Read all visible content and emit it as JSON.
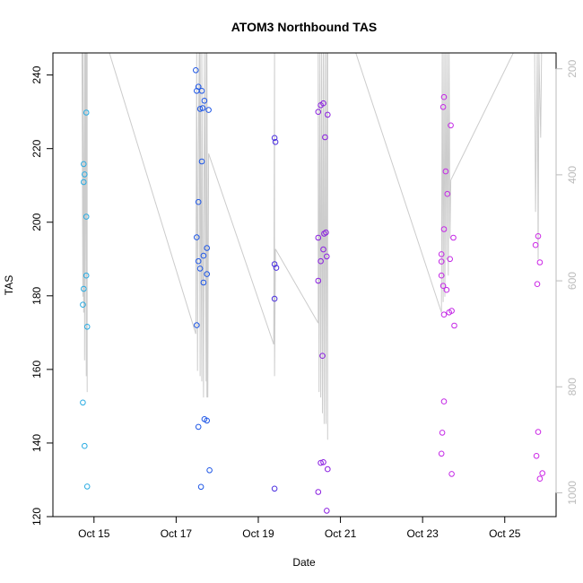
{
  "chart_data": {
    "type": "scatter",
    "title": "ATOM3 Northbound TAS",
    "xlabel": "Date",
    "ylabel": "TAS",
    "y2label": "",
    "grid": false,
    "xlim": [
      "2016-10-14 00:00",
      "2016-10-26 06:00"
    ],
    "ylim": [
      120,
      246
    ],
    "y2lim": [
      1045,
      170
    ],
    "x_ticks": [
      {
        "date": "2016-10-15",
        "label": "Oct 15"
      },
      {
        "date": "2016-10-17",
        "label": "Oct 17"
      },
      {
        "date": "2016-10-19",
        "label": "Oct 19"
      },
      {
        "date": "2016-10-21",
        "label": "Oct 21"
      },
      {
        "date": "2016-10-23",
        "label": "Oct 23"
      },
      {
        "date": "2016-10-25",
        "label": "Oct 25"
      }
    ],
    "y_ticks": [
      120,
      140,
      160,
      180,
      200,
      220,
      240
    ],
    "y2_ticks": [
      200,
      400,
      600,
      800,
      1000
    ],
    "colors": {
      "axis": "#000000",
      "pressure_line": "#cccccc",
      "right_axis": "#bbbbbb",
      "gradient": [
        "#29abe2",
        "#1f57e6",
        "#6b1fe0",
        "#cc28e6"
      ]
    },
    "series": [
      {
        "color": "#29abe2",
        "points": [
          [
            "2016-10-14 18:00",
            215.8
          ],
          [
            "2016-10-14 18:30",
            213.0
          ],
          [
            "2016-10-14 18:00",
            210.9
          ],
          [
            "2016-10-14 19:30",
            229.8
          ],
          [
            "2016-10-14 19:30",
            201.5
          ],
          [
            "2016-10-14 19:30",
            185.5
          ],
          [
            "2016-10-14 18:00",
            181.9
          ],
          [
            "2016-10-14 17:30",
            177.6
          ],
          [
            "2016-10-14 20:00",
            171.6
          ],
          [
            "2016-10-14 17:30",
            151.0
          ],
          [
            "2016-10-14 18:30",
            139.2
          ],
          [
            "2016-10-14 20:00",
            128.2
          ]
        ]
      },
      {
        "color": "#1f57e6",
        "points": [
          [
            "2016-10-17 11:30",
            241.3
          ],
          [
            "2016-10-17 13:00",
            236.8
          ],
          [
            "2016-10-17 12:00",
            235.7
          ],
          [
            "2016-10-17 15:00",
            235.7
          ],
          [
            "2016-10-17 16:30",
            233.0
          ],
          [
            "2016-10-17 15:30",
            231.0
          ],
          [
            "2016-10-17 14:00",
            230.8
          ],
          [
            "2016-10-17 19:00",
            230.5
          ],
          [
            "2016-10-17 15:00",
            216.5
          ],
          [
            "2016-10-17 13:00",
            205.5
          ],
          [
            "2016-10-17 12:00",
            195.9
          ],
          [
            "2016-10-17 18:00",
            193.0
          ],
          [
            "2016-10-17 16:00",
            190.9
          ],
          [
            "2016-10-17 13:00",
            189.4
          ],
          [
            "2016-10-17 14:00",
            187.4
          ],
          [
            "2016-10-17 18:00",
            185.9
          ],
          [
            "2016-10-17 16:00",
            183.6
          ],
          [
            "2016-10-17 12:00",
            172.0
          ],
          [
            "2016-10-17 16:30",
            146.5
          ],
          [
            "2016-10-17 18:00",
            146.1
          ],
          [
            "2016-10-17 13:00",
            144.4
          ],
          [
            "2016-10-17 19:30",
            132.6
          ],
          [
            "2016-10-17 14:30",
            128.1
          ]
        ]
      },
      {
        "color": "#4a2ee0",
        "points": [
          [
            "2016-10-19 09:30",
            222.9
          ],
          [
            "2016-10-19 10:00",
            221.8
          ],
          [
            "2016-10-19 09:30",
            188.6
          ],
          [
            "2016-10-19 10:30",
            187.6
          ],
          [
            "2016-10-19 09:30",
            179.2
          ],
          [
            "2016-10-19 09:30",
            127.6
          ]
        ]
      },
      {
        "color": "#8a1fe0",
        "points": [
          [
            "2016-10-20 11:00",
            230.0
          ],
          [
            "2016-10-20 12:30",
            231.8
          ],
          [
            "2016-10-20 14:00",
            232.3
          ],
          [
            "2016-10-20 16:30",
            229.2
          ],
          [
            "2016-10-20 15:00",
            223.1
          ],
          [
            "2016-10-20 15:30",
            197.2
          ],
          [
            "2016-10-20 14:30",
            196.9
          ],
          [
            "2016-10-20 11:00",
            195.8
          ],
          [
            "2016-10-20 14:00",
            192.6
          ],
          [
            "2016-10-20 16:00",
            190.7
          ],
          [
            "2016-10-20 12:30",
            189.4
          ],
          [
            "2016-10-20 11:00",
            184.1
          ],
          [
            "2016-10-20 13:30",
            163.7
          ],
          [
            "2016-10-20 12:30",
            134.6
          ],
          [
            "2016-10-20 14:00",
            134.8
          ],
          [
            "2016-10-20 16:30",
            132.9
          ],
          [
            "2016-10-20 11:00",
            126.7
          ],
          [
            "2016-10-20 16:00",
            121.6
          ]
        ]
      },
      {
        "color": "#c428e6",
        "points": [
          [
            "2016-10-23 12:30",
            234.0
          ],
          [
            "2016-10-23 12:00",
            231.3
          ],
          [
            "2016-10-23 16:30",
            226.3
          ],
          [
            "2016-10-23 13:30",
            213.8
          ],
          [
            "2016-10-23 14:30",
            207.7
          ],
          [
            "2016-10-23 12:30",
            198.1
          ],
          [
            "2016-10-23 18:00",
            195.8
          ],
          [
            "2016-10-23 11:00",
            191.3
          ],
          [
            "2016-10-23 16:00",
            190.0
          ],
          [
            "2016-10-23 11:00",
            189.3
          ],
          [
            "2016-10-23 11:00",
            185.5
          ],
          [
            "2016-10-23 12:00",
            182.7
          ],
          [
            "2016-10-23 14:00",
            181.6
          ],
          [
            "2016-10-23 17:00",
            175.9
          ],
          [
            "2016-10-23 15:30",
            175.5
          ],
          [
            "2016-10-23 12:30",
            174.9
          ],
          [
            "2016-10-23 18:30",
            171.9
          ],
          [
            "2016-10-23 12:30",
            151.3
          ],
          [
            "2016-10-23 11:30",
            142.8
          ],
          [
            "2016-10-23 11:00",
            137.1
          ],
          [
            "2016-10-23 17:00",
            131.6
          ]
        ]
      },
      {
        "color": "#cc28e6",
        "points": [
          [
            "2016-10-25 19:30",
            196.2
          ],
          [
            "2016-10-25 18:00",
            193.8
          ],
          [
            "2016-10-25 20:30",
            189.1
          ],
          [
            "2016-10-25 19:00",
            183.2
          ],
          [
            "2016-10-25 19:30",
            143.0
          ],
          [
            "2016-10-25 18:30",
            136.5
          ],
          [
            "2016-10-25 22:00",
            131.8
          ],
          [
            "2016-10-25 20:30",
            130.3
          ]
        ]
      }
    ],
    "pressure_trace": {
      "axis": "right",
      "segments": [
        [
          [
            "2016-10-14 17:00",
            170
          ],
          [
            "2016-10-14 17:30",
            630
          ],
          [
            "2016-10-14 17:30",
            170
          ],
          [
            "2016-10-14 18:00",
            660
          ],
          [
            "2016-10-14 18:30",
            170
          ],
          [
            "2016-10-14 18:30",
            750
          ],
          [
            "2016-10-14 19:00",
            170
          ],
          [
            "2016-10-14 19:30",
            780
          ],
          [
            "2016-10-14 19:30",
            170
          ],
          [
            "2016-10-14 20:00",
            810
          ],
          [
            "2016-10-14 20:00",
            170
          ]
        ],
        [
          [
            "2016-10-15 09:00",
            170
          ],
          [
            "2016-10-17 11:30",
            700
          ]
        ],
        [
          [
            "2016-10-17 11:30",
            700
          ],
          [
            "2016-10-17 12:00",
            170
          ],
          [
            "2016-10-17 12:30",
            770
          ],
          [
            "2016-10-17 13:00",
            340
          ],
          [
            "2016-10-17 13:30",
            170
          ],
          [
            "2016-10-17 14:00",
            780
          ],
          [
            "2016-10-17 14:00",
            170
          ],
          [
            "2016-10-17 15:00",
            790
          ],
          [
            "2016-10-17 15:00",
            170
          ],
          [
            "2016-10-17 16:00",
            820
          ],
          [
            "2016-10-17 16:30",
            170
          ],
          [
            "2016-10-17 17:30",
            790
          ],
          [
            "2016-10-17 17:30",
            170
          ],
          [
            "2016-10-17 18:00",
            820
          ],
          [
            "2016-10-17 18:00",
            170
          ],
          [
            "2016-10-17 18:30",
            820
          ],
          [
            "2016-10-17 19:00",
            360
          ]
        ],
        [
          [
            "2016-10-17 19:00",
            360
          ],
          [
            "2016-10-19 09:00",
            720
          ]
        ],
        [
          [
            "2016-10-19 09:00",
            720
          ],
          [
            "2016-10-19 09:30",
            170
          ],
          [
            "2016-10-19 09:30",
            780
          ],
          [
            "2016-10-19 10:00",
            540
          ]
        ],
        [
          [
            "2016-10-19 10:00",
            540
          ],
          [
            "2016-10-20 11:00",
            680
          ]
        ],
        [
          [
            "2016-10-20 11:00",
            680
          ],
          [
            "2016-10-20 11:00",
            170
          ],
          [
            "2016-10-20 11:30",
            810
          ],
          [
            "2016-10-20 12:00",
            170
          ],
          [
            "2016-10-20 12:30",
            820
          ],
          [
            "2016-10-20 13:00",
            170
          ],
          [
            "2016-10-20 13:30",
            850
          ],
          [
            "2016-10-20 14:00",
            170
          ],
          [
            "2016-10-20 14:30",
            870
          ],
          [
            "2016-10-20 15:00",
            170
          ],
          [
            "2016-10-20 15:30",
            870
          ],
          [
            "2016-10-20 16:00",
            170
          ],
          [
            "2016-10-20 16:30",
            900
          ],
          [
            "2016-10-20 16:30",
            170
          ]
        ],
        [
          [
            "2016-10-21 09:00",
            170
          ],
          [
            "2016-10-23 11:00",
            660
          ]
        ],
        [
          [
            "2016-10-23 11:00",
            660
          ],
          [
            "2016-10-23 11:30",
            170
          ],
          [
            "2016-10-23 12:00",
            640
          ],
          [
            "2016-10-23 12:30",
            170
          ],
          [
            "2016-10-23 13:00",
            630
          ],
          [
            "2016-10-23 13:30",
            170
          ],
          [
            "2016-10-23 14:00",
            560
          ],
          [
            "2016-10-23 14:30",
            170
          ],
          [
            "2016-10-23 15:00",
            590
          ],
          [
            "2016-10-23 15:30",
            170
          ],
          [
            "2016-10-23 16:00",
            520
          ],
          [
            "2016-10-23 16:30",
            410
          ]
        ],
        [
          [
            "2016-10-23 16:30",
            410
          ],
          [
            "2016-10-25 05:00",
            170
          ]
        ],
        [
          [
            "2016-10-25 17:30",
            170
          ],
          [
            "2016-10-25 18:00",
            470
          ],
          [
            "2016-10-25 19:00",
            170
          ],
          [
            "2016-10-25 19:30",
            560
          ],
          [
            "2016-10-25 20:00",
            170
          ],
          [
            "2016-10-25 21:00",
            330
          ],
          [
            "2016-10-25 21:30",
            170
          ]
        ]
      ]
    }
  }
}
